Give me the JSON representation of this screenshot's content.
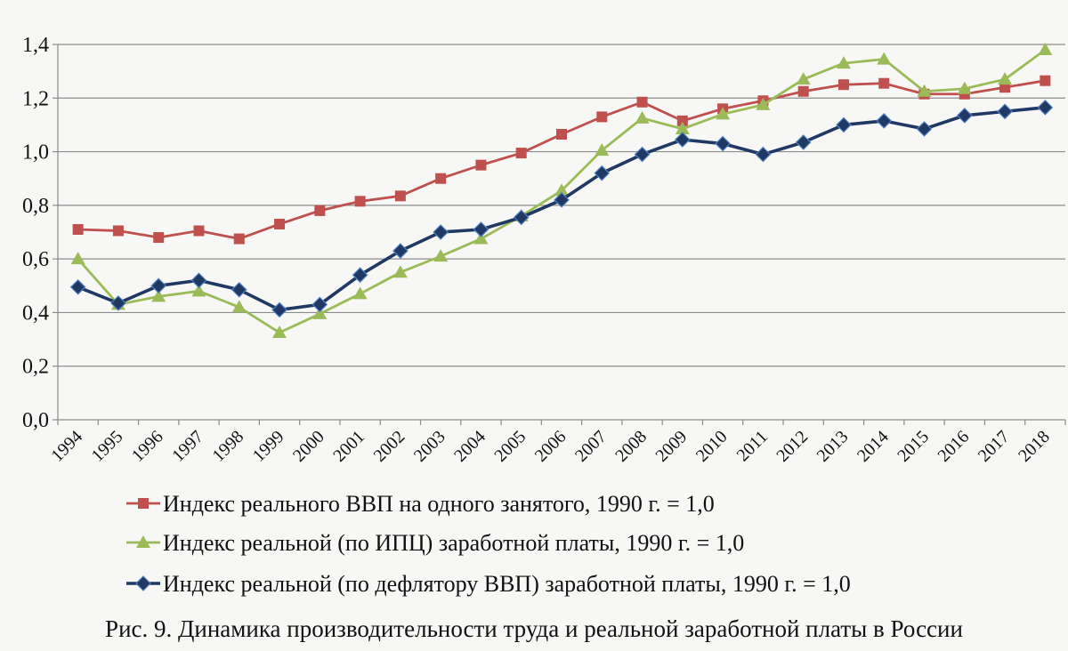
{
  "chart_data": {
    "type": "line",
    "title": "",
    "xlabel": "",
    "ylabel": "",
    "ylim": [
      0,
      1.4
    ],
    "yticks": [
      "0,0",
      "0,2",
      "0,4",
      "0,6",
      "0,8",
      "1,0",
      "1,2",
      "1,4"
    ],
    "grid": true,
    "legend_position": "bottom",
    "categories": [
      "1994",
      "1995",
      "1996",
      "1997",
      "1998",
      "1999",
      "2000",
      "2001",
      "2002",
      "2003",
      "2004",
      "2005",
      "2006",
      "2007",
      "2008",
      "2009",
      "2010",
      "2011",
      "2012",
      "2013",
      "2014",
      "2015",
      "2016",
      "2017",
      "2018"
    ],
    "series": [
      {
        "name": "Индекс реального ВВП на одного занятого, 1990 г. = 1,0",
        "color": "#c0504d",
        "marker": "square",
        "values": [
          0.71,
          0.705,
          0.68,
          0.705,
          0.675,
          0.73,
          0.78,
          0.815,
          0.835,
          0.9,
          0.95,
          0.995,
          1.065,
          1.13,
          1.185,
          1.115,
          1.16,
          1.19,
          1.225,
          1.25,
          1.255,
          1.215,
          1.215,
          1.24,
          1.265
        ]
      },
      {
        "name": "Индекс реальной (по ИПЦ) заработной платы, 1990 г. = 1,0",
        "color": "#9bbb59",
        "marker": "triangle",
        "values": [
          0.6,
          0.43,
          0.46,
          0.48,
          0.42,
          0.325,
          0.395,
          0.47,
          0.55,
          0.61,
          0.675,
          0.76,
          0.855,
          1.005,
          1.125,
          1.085,
          1.14,
          1.175,
          1.27,
          1.33,
          1.345,
          1.225,
          1.235,
          1.27,
          1.38
        ]
      },
      {
        "name": "Индекс реальной (по дефлятору ВВП) заработной платы, 1990 г. = 1,0",
        "color": "#1f3864",
        "marker": "diamond",
        "values": [
          0.495,
          0.435,
          0.5,
          0.52,
          0.485,
          0.41,
          0.43,
          0.54,
          0.63,
          0.7,
          0.71,
          0.755,
          0.82,
          0.92,
          0.99,
          1.045,
          1.03,
          0.99,
          1.035,
          1.1,
          1.115,
          1.085,
          1.135,
          1.15,
          1.165
        ]
      }
    ]
  },
  "caption": "Рис. 9. Динамика производительности труда и реальной заработной платы в России"
}
